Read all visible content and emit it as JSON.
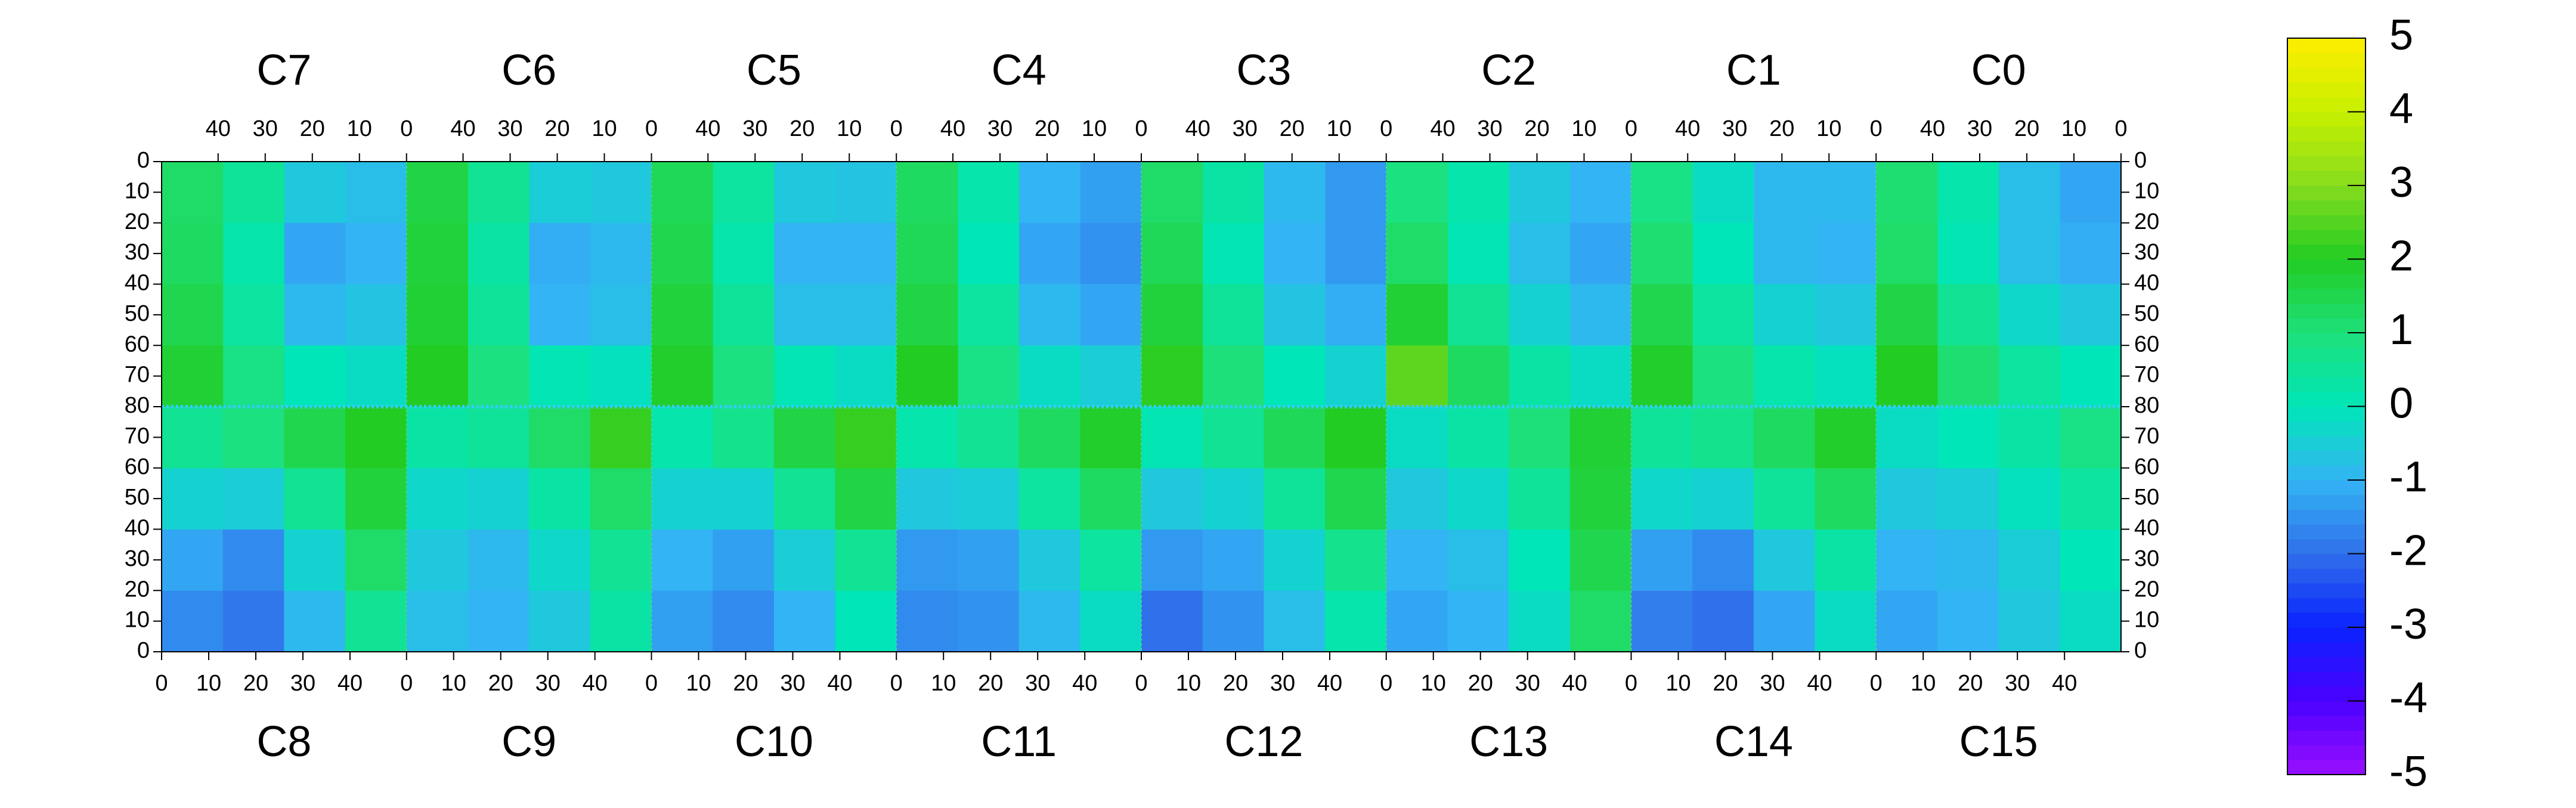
{
  "chart_data": {
    "type": "heatmap",
    "xlim": [
      0,
      52
    ],
    "xticks": [
      0,
      10,
      20,
      30,
      40
    ],
    "ylim": [
      0,
      80
    ],
    "yticks": [
      0,
      10,
      20,
      30,
      40,
      50,
      60,
      70,
      80
    ],
    "xbins": [
      0,
      13,
      26,
      39,
      52
    ],
    "ybins": [
      0,
      20,
      40,
      60,
      80
    ],
    "x_reversed_top": true,
    "zlim": [
      -5,
      5
    ],
    "zticks": [
      -5,
      -4,
      -3,
      -2,
      -1,
      0,
      1,
      2,
      3,
      4,
      5
    ],
    "palette": [
      "#9a10ff",
      "#4a00ff",
      "#0a22ff",
      "#3070ea",
      "#33b4f4",
      "#00e6b8",
      "#1ee07a",
      "#22cc22",
      "#86dc1e",
      "#c8f000",
      "#ffee00"
    ],
    "panels_top": [
      {
        "name": "C7",
        "values": [
          [
            -0.8,
            -0.6,
            0.5,
            1.2
          ],
          [
            -1.0,
            -1.2,
            0.2,
            1.3
          ],
          [
            -0.7,
            -0.9,
            0.4,
            1.5
          ],
          [
            -0.2,
            0.0,
            0.8,
            1.8
          ]
        ]
      },
      {
        "name": "C6",
        "values": [
          [
            -0.6,
            -0.5,
            0.6,
            1.6
          ],
          [
            -0.9,
            -1.1,
            0.3,
            1.7
          ],
          [
            -0.8,
            -1.0,
            0.5,
            1.8
          ],
          [
            -0.1,
            0.1,
            0.9,
            2.0
          ]
        ]
      },
      {
        "name": "C5",
        "values": [
          [
            -0.7,
            -0.6,
            0.4,
            1.4
          ],
          [
            -1.0,
            -1.0,
            0.2,
            1.5
          ],
          [
            -0.8,
            -0.8,
            0.5,
            1.7
          ],
          [
            -0.2,
            0.1,
            0.9,
            1.9
          ]
        ]
      },
      {
        "name": "C4",
        "values": [
          [
            -1.3,
            -1.0,
            0.2,
            1.3
          ],
          [
            -1.5,
            -1.2,
            0.0,
            1.4
          ],
          [
            -1.2,
            -0.9,
            0.4,
            1.6
          ],
          [
            -0.5,
            -0.2,
            0.8,
            2.0
          ]
        ]
      },
      {
        "name": "C3",
        "values": [
          [
            -1.4,
            -0.9,
            0.3,
            1.2
          ],
          [
            -1.4,
            -1.0,
            0.1,
            1.4
          ],
          [
            -1.1,
            -0.7,
            0.5,
            1.7
          ],
          [
            -0.4,
            0.0,
            1.0,
            2.1
          ]
        ]
      },
      {
        "name": "C2",
        "values": [
          [
            -1.0,
            -0.6,
            0.2,
            0.9
          ],
          [
            -1.2,
            -0.8,
            0.1,
            1.2
          ],
          [
            -0.9,
            -0.4,
            0.6,
            1.8
          ],
          [
            -0.2,
            0.3,
            1.3,
            2.6
          ]
        ]
      },
      {
        "name": "C1",
        "values": [
          [
            -0.9,
            -0.9,
            -0.2,
            0.8
          ],
          [
            -1.0,
            -0.9,
            0.0,
            1.1
          ],
          [
            -0.6,
            -0.4,
            0.4,
            1.5
          ],
          [
            -0.1,
            0.2,
            0.9,
            1.9
          ]
        ]
      },
      {
        "name": "C0",
        "values": [
          [
            -1.2,
            -0.8,
            0.2,
            1.1
          ],
          [
            -1.1,
            -0.8,
            0.1,
            1.2
          ],
          [
            -0.6,
            -0.3,
            0.6,
            1.6
          ],
          [
            0.0,
            0.4,
            1.1,
            2.0
          ]
        ]
      }
    ],
    "panels_bottom": [
      {
        "name": "C8",
        "values": [
          [
            -1.6,
            -1.9,
            -0.9,
            0.6
          ],
          [
            -1.2,
            -1.6,
            -0.4,
            1.2
          ],
          [
            -0.4,
            -0.5,
            0.6,
            1.7
          ],
          [
            0.6,
            0.9,
            1.5,
            2.0
          ]
        ]
      },
      {
        "name": "C9",
        "values": [
          [
            -0.8,
            -1.0,
            -0.6,
            0.3
          ],
          [
            -0.6,
            -0.9,
            -0.3,
            0.6
          ],
          [
            -0.3,
            -0.4,
            0.3,
            1.2
          ],
          [
            0.3,
            0.5,
            1.2,
            2.2
          ]
        ]
      },
      {
        "name": "C10",
        "values": [
          [
            -1.3,
            -1.6,
            -1.0,
            0.0
          ],
          [
            -1.0,
            -1.3,
            -0.5,
            0.6
          ],
          [
            -0.4,
            -0.4,
            0.6,
            1.6
          ],
          [
            0.2,
            0.7,
            1.6,
            2.2
          ]
        ]
      },
      {
        "name": "C11",
        "values": [
          [
            -1.6,
            -1.5,
            -0.9,
            -0.2
          ],
          [
            -1.4,
            -1.3,
            -0.6,
            0.4
          ],
          [
            -0.6,
            -0.5,
            0.4,
            1.3
          ],
          [
            0.2,
            0.6,
            1.3,
            1.9
          ]
        ]
      },
      {
        "name": "C12",
        "values": [
          [
            -2.0,
            -1.5,
            -0.8,
            0.2
          ],
          [
            -1.4,
            -1.2,
            -0.4,
            0.7
          ],
          [
            -0.6,
            -0.4,
            0.5,
            1.5
          ],
          [
            0.1,
            0.6,
            1.4,
            2.0
          ]
        ]
      },
      {
        "name": "C13",
        "values": [
          [
            -1.2,
            -1.0,
            -0.2,
            1.2
          ],
          [
            -1.0,
            -0.8,
            0.0,
            1.5
          ],
          [
            -0.6,
            -0.3,
            0.5,
            1.7
          ],
          [
            -0.2,
            0.3,
            1.0,
            1.8
          ]
        ]
      },
      {
        "name": "C14",
        "values": [
          [
            -1.8,
            -2.0,
            -1.2,
            -0.2
          ],
          [
            -1.3,
            -1.6,
            -0.6,
            0.3
          ],
          [
            -0.3,
            -0.4,
            0.5,
            1.3
          ],
          [
            0.5,
            0.7,
            1.3,
            1.9
          ]
        ]
      },
      {
        "name": "C15",
        "values": [
          [
            -1.2,
            -1.0,
            -0.6,
            -0.2
          ],
          [
            -1.0,
            -0.9,
            -0.5,
            0.0
          ],
          [
            -0.6,
            -0.5,
            -0.1,
            0.4
          ],
          [
            -0.2,
            0.0,
            0.3,
            0.8
          ]
        ]
      }
    ]
  }
}
